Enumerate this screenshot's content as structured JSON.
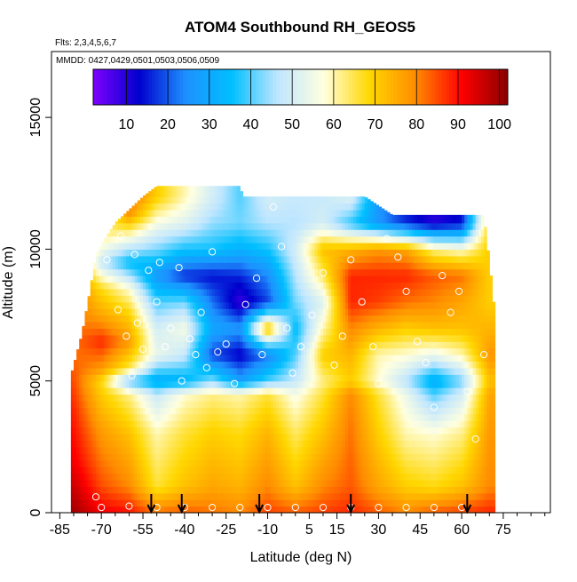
{
  "title": "ATOM4 Southbound RH_GEOS5",
  "subtitle_flights": "Flts: 2,3,4,5,6,7",
  "subtitle_dates": "MMDD: 0427,0429,0501,0503,0506,0509",
  "xlabel": "Latitude (deg N)",
  "ylabel": "Altitude (m)",
  "chart_data": {
    "type": "heatmap",
    "title": "ATOM4 Southbound RH_GEOS5",
    "xlabel": "Latitude (deg N)",
    "ylabel": "Altitude (m)",
    "xlim": [
      -88,
      92
    ],
    "ylim": [
      0,
      17500
    ],
    "x_ticks": [
      -85,
      -70,
      -55,
      -40,
      -25,
      -10,
      5,
      15,
      30,
      45,
      60,
      75
    ],
    "y_ticks": [
      0,
      5000,
      10000,
      15000
    ],
    "colorbar": {
      "min": 2,
      "max": 102,
      "ticks": [
        10,
        20,
        30,
        40,
        50,
        60,
        70,
        80,
        90,
        100
      ],
      "colors": [
        "#7f00ff",
        "#0000cd",
        "#1e90ff",
        "#00bfff",
        "#bfe6ff",
        "#ffffe0",
        "#ffd700",
        "#ff8c00",
        "#ff0000",
        "#8b0000"
      ]
    },
    "coverage_lat": [
      -81,
      72
    ],
    "max_altitude_profile": [
      [
        -81,
        5200
      ],
      [
        -77,
        6800
      ],
      [
        -74,
        8500
      ],
      [
        -72,
        9800
      ],
      [
        -70,
        10200
      ],
      [
        -65,
        11000
      ],
      [
        -60,
        11500
      ],
      [
        -55,
        12000
      ],
      [
        -50,
        12400
      ],
      [
        -20,
        12400
      ],
      [
        -19,
        12000
      ],
      [
        -10,
        12000
      ],
      [
        25,
        12000
      ],
      [
        35,
        11300
      ],
      [
        68,
        11300
      ],
      [
        70,
        9500
      ],
      [
        72,
        7500
      ]
    ],
    "profile_markers_lat": [
      -52,
      -41,
      -13,
      20,
      62
    ],
    "observation_points": [
      [
        -72,
        600
      ],
      [
        -68,
        9600
      ],
      [
        -64,
        7700
      ],
      [
        -63,
        10500
      ],
      [
        -61,
        6700
      ],
      [
        -59,
        5200
      ],
      [
        -58,
        9800
      ],
      [
        -57,
        7200
      ],
      [
        -55,
        6200
      ],
      [
        -53,
        9200
      ],
      [
        -50,
        8000
      ],
      [
        -49,
        9500
      ],
      [
        -47,
        6300
      ],
      [
        -45,
        7000
      ],
      [
        -42,
        9300
      ],
      [
        -41,
        5000
      ],
      [
        -38,
        6600
      ],
      [
        -36,
        6000
      ],
      [
        -34,
        7600
      ],
      [
        -32,
        5500
      ],
      [
        -30,
        9900
      ],
      [
        -28,
        6100
      ],
      [
        -25,
        6400
      ],
      [
        -22,
        4900
      ],
      [
        -18,
        7900
      ],
      [
        -14,
        8900
      ],
      [
        -12,
        6000
      ],
      [
        -8,
        11600
      ],
      [
        -5,
        10100
      ],
      [
        -3,
        7000
      ],
      [
        -1,
        5300
      ],
      [
        2,
        6300
      ],
      [
        6,
        7500
      ],
      [
        10,
        9100
      ],
      [
        14,
        5600
      ],
      [
        17,
        6700
      ],
      [
        20,
        9600
      ],
      [
        24,
        8000
      ],
      [
        28,
        6300
      ],
      [
        30,
        4900
      ],
      [
        33,
        10400
      ],
      [
        37,
        9700
      ],
      [
        40,
        8400
      ],
      [
        44,
        6500
      ],
      [
        47,
        5700
      ],
      [
        50,
        4000
      ],
      [
        53,
        9000
      ],
      [
        56,
        7600
      ],
      [
        59,
        8400
      ],
      [
        62,
        4600
      ],
      [
        65,
        2800
      ],
      [
        68,
        6000
      ],
      [
        -70,
        200
      ],
      [
        -60,
        250
      ],
      [
        -50,
        200
      ],
      [
        -40,
        200
      ],
      [
        -30,
        200
      ],
      [
        -20,
        200
      ],
      [
        -10,
        200
      ],
      [
        0,
        200
      ],
      [
        10,
        200
      ],
      [
        20,
        200
      ],
      [
        30,
        200
      ],
      [
        40,
        200
      ],
      [
        50,
        200
      ],
      [
        60,
        200
      ]
    ],
    "anchors": [
      {
        "lat": -80,
        "levels": [
          [
            0,
            100
          ],
          [
            2000,
            92
          ],
          [
            4000,
            88
          ],
          [
            6000,
            82
          ]
        ]
      },
      {
        "lat": -70,
        "levels": [
          [
            0,
            92
          ],
          [
            1000,
            85
          ],
          [
            3000,
            78
          ],
          [
            5000,
            68
          ],
          [
            5500,
            78
          ],
          [
            6500,
            88
          ],
          [
            7500,
            76
          ],
          [
            8500,
            68
          ],
          [
            9500,
            48
          ],
          [
            10500,
            62
          ]
        ]
      },
      {
        "lat": -60,
        "levels": [
          [
            0,
            90
          ],
          [
            1000,
            80
          ],
          [
            3000,
            72
          ],
          [
            4500,
            62
          ],
          [
            5000,
            40
          ],
          [
            5500,
            65
          ],
          [
            6500,
            78
          ],
          [
            7500,
            70
          ],
          [
            8500,
            58
          ],
          [
            9500,
            34
          ],
          [
            10500,
            58
          ],
          [
            11300,
            78
          ],
          [
            12000,
            84
          ]
        ]
      },
      {
        "lat": -50,
        "levels": [
          [
            0,
            82
          ],
          [
            1000,
            66
          ],
          [
            3000,
            60
          ],
          [
            4500,
            48
          ],
          [
            5000,
            30
          ],
          [
            6000,
            54
          ],
          [
            7000,
            50
          ],
          [
            8000,
            40
          ],
          [
            9000,
            26
          ],
          [
            10000,
            42
          ],
          [
            11000,
            56
          ],
          [
            12000,
            70
          ]
        ]
      },
      {
        "lat": -40,
        "levels": [
          [
            0,
            84
          ],
          [
            1000,
            72
          ],
          [
            3000,
            66
          ],
          [
            4500,
            58
          ],
          [
            5000,
            32
          ],
          [
            6000,
            48
          ],
          [
            7000,
            56
          ],
          [
            8000,
            42
          ],
          [
            9000,
            16
          ],
          [
            10000,
            36
          ],
          [
            11000,
            52
          ],
          [
            12000,
            60
          ]
        ]
      },
      {
        "lat": -30,
        "levels": [
          [
            0,
            82
          ],
          [
            1000,
            76
          ],
          [
            3000,
            70
          ],
          [
            4500,
            62
          ],
          [
            5000,
            44
          ],
          [
            6000,
            18
          ],
          [
            7000,
            30
          ],
          [
            8000,
            22
          ],
          [
            9000,
            14
          ],
          [
            10000,
            36
          ],
          [
            11000,
            44
          ],
          [
            12000,
            50
          ]
        ]
      },
      {
        "lat": -20,
        "levels": [
          [
            0,
            80
          ],
          [
            1000,
            74
          ],
          [
            3000,
            68
          ],
          [
            4500,
            60
          ],
          [
            5000,
            28
          ],
          [
            6000,
            12
          ],
          [
            7000,
            26
          ],
          [
            8000,
            8
          ],
          [
            9000,
            16
          ],
          [
            10000,
            32
          ],
          [
            11000,
            42
          ],
          [
            12000,
            40
          ]
        ]
      },
      {
        "lat": -10,
        "levels": [
          [
            0,
            86
          ],
          [
            1000,
            80
          ],
          [
            3000,
            74
          ],
          [
            4500,
            66
          ],
          [
            5000,
            40
          ],
          [
            6000,
            22
          ],
          [
            7000,
            74
          ],
          [
            8000,
            18
          ],
          [
            9000,
            24
          ],
          [
            10000,
            36
          ],
          [
            11000,
            46
          ],
          [
            12000,
            50
          ]
        ]
      },
      {
        "lat": 0,
        "levels": [
          [
            0,
            84
          ],
          [
            1000,
            72
          ],
          [
            3000,
            64
          ],
          [
            4500,
            56
          ],
          [
            5000,
            48
          ],
          [
            6000,
            40
          ],
          [
            7000,
            34
          ],
          [
            8000,
            42
          ],
          [
            9000,
            46
          ],
          [
            10000,
            50
          ],
          [
            11000,
            46
          ],
          [
            12000,
            48
          ]
        ]
      },
      {
        "lat": 10,
        "levels": [
          [
            0,
            86
          ],
          [
            1000,
            80
          ],
          [
            3000,
            72
          ],
          [
            4500,
            66
          ],
          [
            5000,
            62
          ],
          [
            6000,
            70
          ],
          [
            7000,
            60
          ],
          [
            8000,
            52
          ],
          [
            9000,
            64
          ],
          [
            10000,
            72
          ],
          [
            11000,
            50
          ],
          [
            12000,
            48
          ]
        ]
      },
      {
        "lat": 20,
        "levels": [
          [
            0,
            88
          ],
          [
            1000,
            84
          ],
          [
            3000,
            82
          ],
          [
            4500,
            80
          ],
          [
            5000,
            70
          ],
          [
            6000,
            74
          ],
          [
            7000,
            80
          ],
          [
            8000,
            88
          ],
          [
            9000,
            88
          ],
          [
            10000,
            74
          ],
          [
            11000,
            38
          ],
          [
            12000,
            52
          ]
        ]
      },
      {
        "lat": 30,
        "levels": [
          [
            0,
            84
          ],
          [
            1000,
            76
          ],
          [
            3000,
            70
          ],
          [
            4500,
            66
          ],
          [
            5000,
            58
          ],
          [
            6000,
            60
          ],
          [
            7000,
            74
          ],
          [
            8000,
            86
          ],
          [
            9000,
            88
          ],
          [
            10000,
            78
          ],
          [
            11000,
            26
          ]
        ]
      },
      {
        "lat": 40,
        "levels": [
          [
            0,
            80
          ],
          [
            1000,
            70
          ],
          [
            3000,
            60
          ],
          [
            4500,
            54
          ],
          [
            5000,
            46
          ],
          [
            6000,
            58
          ],
          [
            7000,
            70
          ],
          [
            8000,
            82
          ],
          [
            9000,
            88
          ],
          [
            10000,
            76
          ],
          [
            11000,
            16
          ]
        ]
      },
      {
        "lat": 50,
        "levels": [
          [
            0,
            84
          ],
          [
            1000,
            68
          ],
          [
            3000,
            58
          ],
          [
            4500,
            40
          ],
          [
            5000,
            30
          ],
          [
            6000,
            54
          ],
          [
            7000,
            72
          ],
          [
            8000,
            80
          ],
          [
            9000,
            84
          ],
          [
            10000,
            62
          ],
          [
            11000,
            10
          ]
        ]
      },
      {
        "lat": 60,
        "levels": [
          [
            0,
            86
          ],
          [
            1000,
            72
          ],
          [
            3000,
            62
          ],
          [
            4500,
            50
          ],
          [
            5000,
            42
          ],
          [
            6000,
            60
          ],
          [
            7000,
            72
          ],
          [
            8000,
            76
          ],
          [
            9000,
            82
          ],
          [
            10000,
            58
          ],
          [
            11000,
            14
          ]
        ]
      },
      {
        "lat": 70,
        "levels": [
          [
            0,
            88
          ],
          [
            1000,
            80
          ],
          [
            3000,
            78
          ],
          [
            4500,
            76
          ],
          [
            5000,
            72
          ],
          [
            6000,
            78
          ],
          [
            7000,
            74
          ],
          [
            8000,
            70
          ]
        ]
      }
    ]
  }
}
